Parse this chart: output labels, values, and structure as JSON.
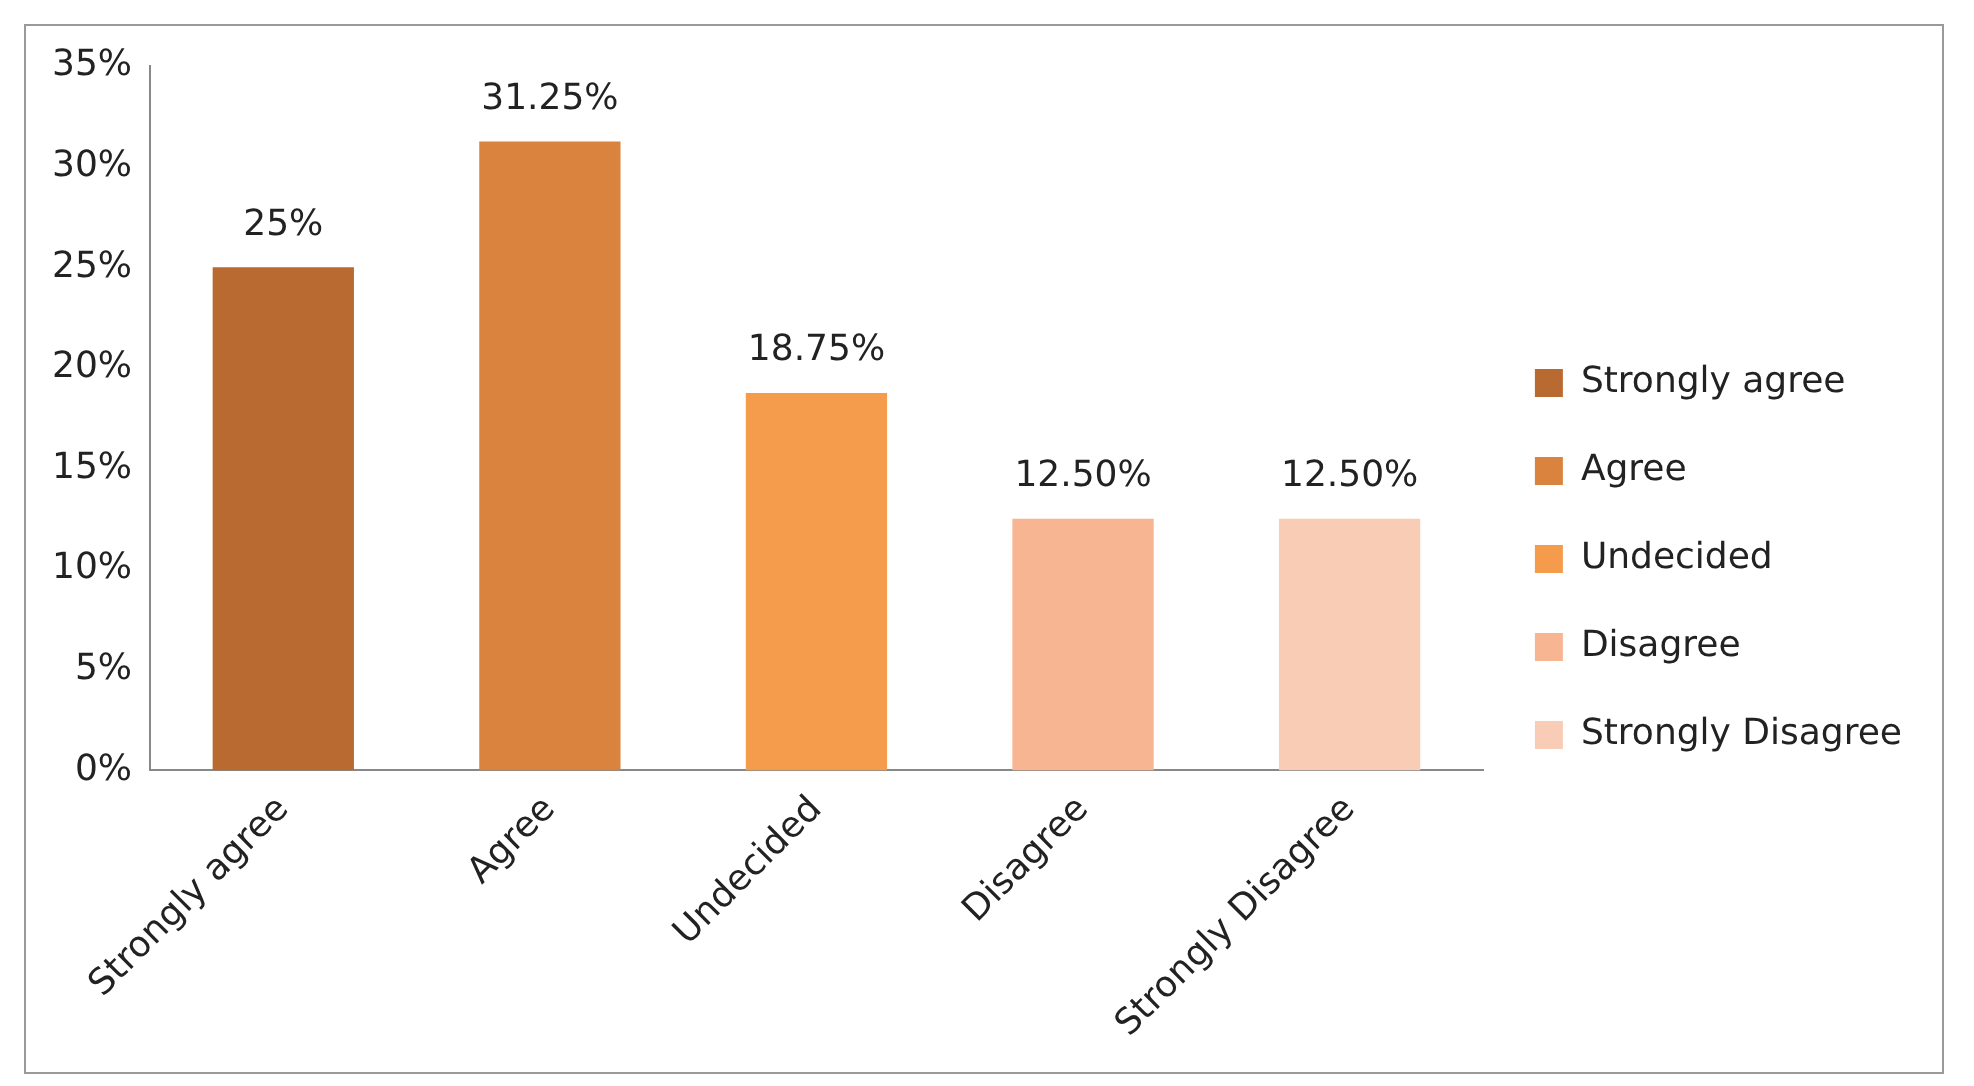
{
  "chart_data": {
    "type": "bar",
    "categories": [
      "Strongly agree",
      "Agree",
      "Undecided",
      "Disagree",
      "Strongly Disagree"
    ],
    "series": [
      {
        "name": "Strongly agree",
        "color": "#b86a30",
        "values": [
          25,
          null,
          null,
          null,
          null
        ],
        "value_labels": [
          "25%",
          null,
          null,
          null,
          null
        ]
      },
      {
        "name": "Agree",
        "color": "#d9833f",
        "values": [
          null,
          31.25,
          null,
          null,
          null
        ],
        "value_labels": [
          null,
          "31.25%",
          null,
          null,
          null
        ]
      },
      {
        "name": "Undecided",
        "color": "#f59b4c",
        "values": [
          null,
          null,
          18.75,
          null,
          null
        ],
        "value_labels": [
          null,
          null,
          "18.75%",
          null,
          null
        ]
      },
      {
        "name": "Disagree",
        "color": "#f7b592",
        "values": [
          null,
          null,
          null,
          12.5,
          null
        ],
        "value_labels": [
          null,
          null,
          null,
          "12.50%",
          null
        ]
      },
      {
        "name": "Strongly Disagree",
        "color": "#f9cdb5",
        "values": [
          null,
          null,
          null,
          null,
          12.5
        ],
        "value_labels": [
          null,
          null,
          null,
          null,
          "12.50%"
        ]
      }
    ],
    "ylim": [
      0,
      35
    ],
    "yticks": [
      {
        "value": 0,
        "label": "0%"
      },
      {
        "value": 5,
        "label": "5%"
      },
      {
        "value": 10,
        "label": "10%"
      },
      {
        "value": 15,
        "label": "15%"
      },
      {
        "value": 20,
        "label": "20%"
      },
      {
        "value": 25,
        "label": "25%"
      },
      {
        "value": 30,
        "label": "30%"
      },
      {
        "value": 35,
        "label": "35%"
      }
    ],
    "grid": false,
    "legend": "right"
  }
}
